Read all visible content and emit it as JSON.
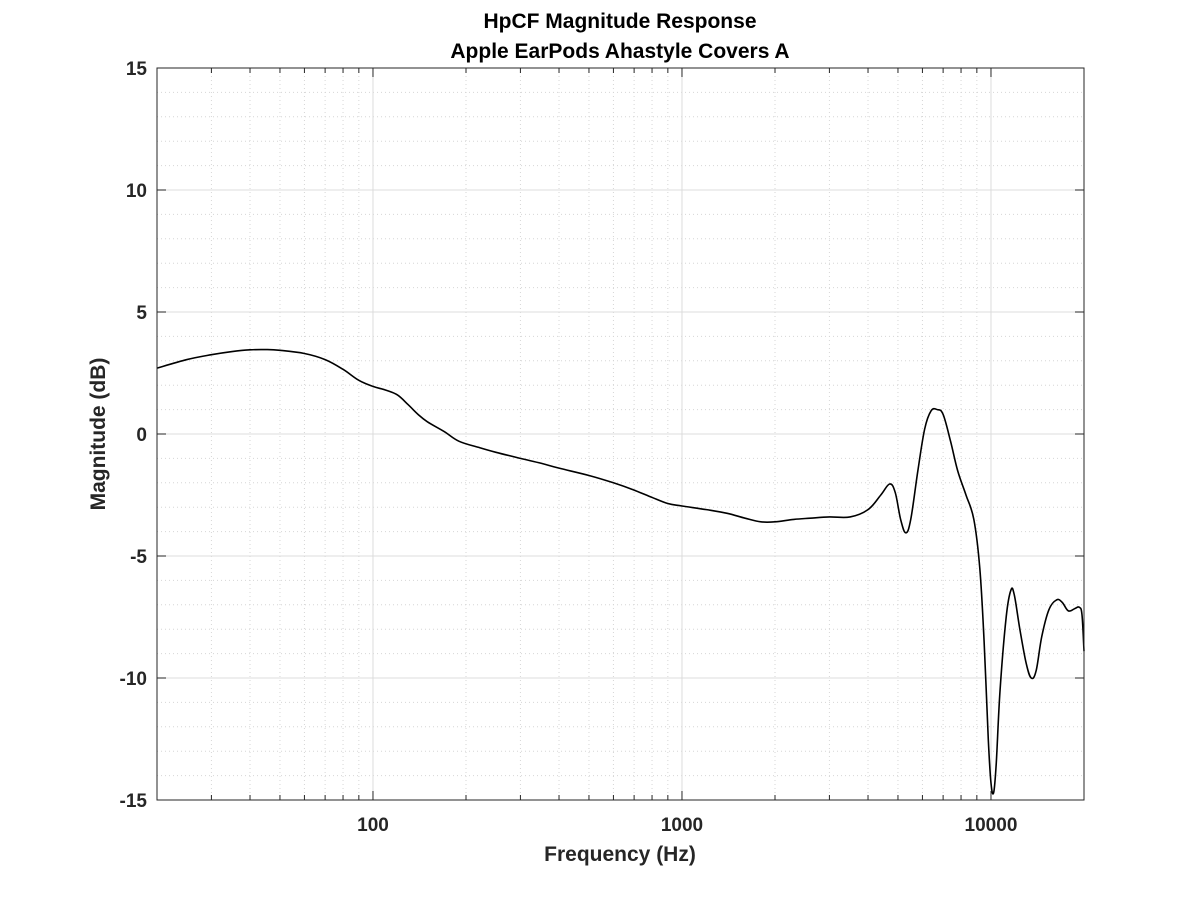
{
  "chart_data": {
    "type": "line",
    "title": "HpCF Magnitude Response",
    "subtitle": "Apple EarPods Ahastyle Covers A",
    "xlabel": "Frequency (Hz)",
    "ylabel": "Magnitude (dB)",
    "xscale": "log",
    "xlim": [
      20,
      20000
    ],
    "ylim": [
      -15,
      15
    ],
    "xticks": [
      100,
      1000,
      10000
    ],
    "xtick_labels": [
      "100",
      "1000",
      "10000"
    ],
    "yticks": [
      15,
      10,
      5,
      0,
      -5,
      -10,
      -15
    ],
    "ytick_labels": [
      "15",
      "10",
      "5",
      "0",
      "-5",
      "-10",
      "-15"
    ],
    "grid": true,
    "line_color": "#000000",
    "series": [
      {
        "points": [
          [
            20,
            2.7
          ],
          [
            25,
            3.05
          ],
          [
            30,
            3.25
          ],
          [
            35,
            3.38
          ],
          [
            40,
            3.45
          ],
          [
            45,
            3.46
          ],
          [
            50,
            3.43
          ],
          [
            60,
            3.3
          ],
          [
            70,
            3.05
          ],
          [
            80,
            2.65
          ],
          [
            90,
            2.2
          ],
          [
            100,
            1.95
          ],
          [
            110,
            1.8
          ],
          [
            120,
            1.6
          ],
          [
            130,
            1.2
          ],
          [
            140,
            0.8
          ],
          [
            150,
            0.5
          ],
          [
            170,
            0.1
          ],
          [
            190,
            -0.3
          ],
          [
            220,
            -0.55
          ],
          [
            250,
            -0.75
          ],
          [
            300,
            -1.0
          ],
          [
            350,
            -1.2
          ],
          [
            400,
            -1.4
          ],
          [
            500,
            -1.7
          ],
          [
            600,
            -2.0
          ],
          [
            700,
            -2.3
          ],
          [
            800,
            -2.6
          ],
          [
            900,
            -2.85
          ],
          [
            1000,
            -2.95
          ],
          [
            1200,
            -3.1
          ],
          [
            1400,
            -3.25
          ],
          [
            1600,
            -3.45
          ],
          [
            1800,
            -3.6
          ],
          [
            2000,
            -3.6
          ],
          [
            2300,
            -3.5
          ],
          [
            2600,
            -3.45
          ],
          [
            3000,
            -3.4
          ],
          [
            3500,
            -3.4
          ],
          [
            4000,
            -3.1
          ],
          [
            4400,
            -2.5
          ],
          [
            4700,
            -2.05
          ],
          [
            4900,
            -2.4
          ],
          [
            5100,
            -3.5
          ],
          [
            5300,
            -4.05
          ],
          [
            5500,
            -3.5
          ],
          [
            5800,
            -1.5
          ],
          [
            6100,
            0.2
          ],
          [
            6400,
            0.95
          ],
          [
            6700,
            1.0
          ],
          [
            7000,
            0.8
          ],
          [
            7400,
            -0.3
          ],
          [
            7800,
            -1.5
          ],
          [
            8300,
            -2.5
          ],
          [
            8800,
            -3.5
          ],
          [
            9200,
            -5.5
          ],
          [
            9500,
            -8.5
          ],
          [
            9800,
            -12.5
          ],
          [
            10000,
            -14.3
          ],
          [
            10200,
            -14.7
          ],
          [
            10400,
            -13.5
          ],
          [
            10700,
            -10.5
          ],
          [
            11200,
            -7.5
          ],
          [
            11600,
            -6.4
          ],
          [
            11900,
            -6.6
          ],
          [
            12400,
            -8.0
          ],
          [
            13000,
            -9.4
          ],
          [
            13500,
            -10.0
          ],
          [
            14000,
            -9.7
          ],
          [
            14600,
            -8.3
          ],
          [
            15400,
            -7.2
          ],
          [
            16300,
            -6.8
          ],
          [
            17000,
            -6.9
          ],
          [
            17800,
            -7.25
          ],
          [
            18700,
            -7.15
          ],
          [
            19300,
            -7.1
          ],
          [
            19700,
            -7.4
          ],
          [
            20000,
            -8.9
          ]
        ]
      }
    ]
  }
}
